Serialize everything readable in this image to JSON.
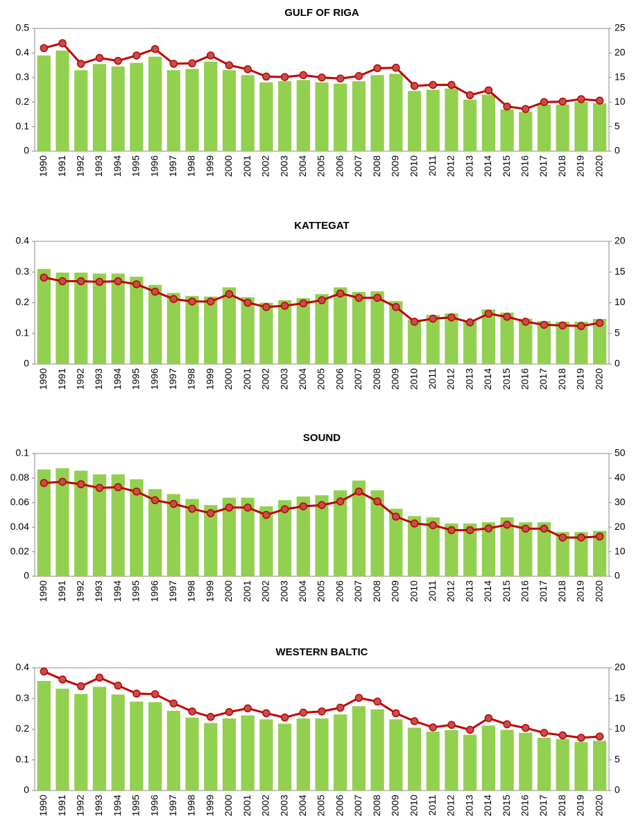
{
  "chart_data": [
    {
      "type": "bar-line",
      "title": "GULF OF RIGA",
      "categories": [
        "1990",
        "1991",
        "1992",
        "1993",
        "1994",
        "1995",
        "1996",
        "1997",
        "1998",
        "1999",
        "2000",
        "2001",
        "2002",
        "2003",
        "2004",
        "2005",
        "2006",
        "2007",
        "2008",
        "2009",
        "2010",
        "2011",
        "2012",
        "2013",
        "2014",
        "2015",
        "2016",
        "2017",
        "2018",
        "2019",
        "2020"
      ],
      "series": [
        {
          "color": "#92d050",
          "values": [
            0.39,
            0.41,
            0.33,
            0.355,
            0.345,
            0.36,
            0.385,
            0.33,
            0.335,
            0.365,
            0.33,
            0.31,
            0.28,
            0.285,
            0.29,
            0.28,
            0.275,
            0.285,
            0.31,
            0.315,
            0.245,
            0.25,
            0.255,
            0.21,
            0.23,
            0.17,
            0.16,
            0.19,
            0.19,
            0.2,
            0.195
          ]
        },
        {
          "color": "#c00000",
          "axis": "y2",
          "values": [
            21,
            22,
            17.8,
            19,
            18.4,
            19.5,
            20.8,
            17.8,
            17.9,
            19.5,
            17.5,
            16.7,
            15.2,
            15.1,
            15.5,
            15,
            14.8,
            15.3,
            16.9,
            17,
            13.3,
            13.5,
            13.5,
            11.4,
            12.4,
            9.1,
            8.6,
            10,
            10.1,
            10.6,
            10.3
          ]
        }
      ],
      "ylim": [
        0,
        0.5
      ],
      "yticks": [
        0,
        0.1,
        0.2,
        0.3,
        0.4,
        0.5
      ],
      "y2lim": [
        0,
        25
      ],
      "y2ticks": [
        0,
        5,
        10,
        15,
        20,
        25
      ]
    },
    {
      "type": "bar-line",
      "title": "KATTEGAT",
      "categories": [
        "1990",
        "1991",
        "1992",
        "1993",
        "1994",
        "1995",
        "1996",
        "1997",
        "1998",
        "1999",
        "2000",
        "2001",
        "2002",
        "2003",
        "2004",
        "2005",
        "2006",
        "2007",
        "2008",
        "2009",
        "2010",
        "2011",
        "2012",
        "2013",
        "2014",
        "2015",
        "2016",
        "2017",
        "2018",
        "2019",
        "2020"
      ],
      "series": [
        {
          "color": "#92d050",
          "values": [
            0.31,
            0.298,
            0.298,
            0.295,
            0.295,
            0.285,
            0.258,
            0.232,
            0.222,
            0.22,
            0.25,
            0.218,
            0.2,
            0.208,
            0.215,
            0.228,
            0.25,
            0.235,
            0.237,
            0.205,
            0.145,
            0.16,
            0.165,
            0.14,
            0.178,
            0.168,
            0.148,
            0.14,
            0.138,
            0.138,
            0.147
          ]
        },
        {
          "color": "#c00000",
          "axis": "y2",
          "values": [
            14.1,
            13.5,
            13.5,
            13.4,
            13.5,
            13,
            11.8,
            10.6,
            10.2,
            10.2,
            11.4,
            10,
            9.3,
            9.5,
            9.9,
            10.4,
            11.5,
            10.8,
            10.8,
            9.3,
            6.9,
            7.4,
            7.6,
            6.8,
            8.2,
            7.7,
            6.9,
            6.4,
            6.3,
            6.2,
            6.7
          ]
        }
      ],
      "ylim": [
        0,
        0.4
      ],
      "yticks": [
        0,
        0.1,
        0.2,
        0.3,
        0.4
      ],
      "y2lim": [
        0,
        20
      ],
      "y2ticks": [
        0,
        5,
        10,
        15,
        20
      ]
    },
    {
      "type": "bar-line",
      "title": "SOUND",
      "categories": [
        "1990",
        "1991",
        "1992",
        "1993",
        "1994",
        "1995",
        "1996",
        "1997",
        "1998",
        "1999",
        "2000",
        "2001",
        "2002",
        "2003",
        "2004",
        "2005",
        "2006",
        "2007",
        "2008",
        "2009",
        "2010",
        "2011",
        "2012",
        "2013",
        "2014",
        "2015",
        "2016",
        "2017",
        "2018",
        "2019",
        "2020"
      ],
      "series": [
        {
          "color": "#92d050",
          "values": [
            0.087,
            0.088,
            0.086,
            0.083,
            0.083,
            0.079,
            0.071,
            0.067,
            0.063,
            0.058,
            0.064,
            0.064,
            0.057,
            0.062,
            0.065,
            0.066,
            0.07,
            0.078,
            0.07,
            0.055,
            0.049,
            0.048,
            0.043,
            0.043,
            0.044,
            0.048,
            0.044,
            0.044,
            0.036,
            0.036,
            0.037
          ]
        },
        {
          "color": "#c00000",
          "axis": "y2",
          "values": [
            38,
            38.5,
            37.5,
            36,
            36.3,
            34.5,
            31,
            29.5,
            27.5,
            25.7,
            28,
            28,
            25,
            27.3,
            28.5,
            29,
            30.5,
            34.5,
            30.5,
            24.3,
            21.5,
            20.8,
            18.8,
            18.8,
            19.5,
            21,
            19.4,
            19.4,
            15.8,
            15.8,
            16.2
          ]
        }
      ],
      "ylim": [
        0,
        0.1
      ],
      "yticks": [
        0,
        0.02,
        0.04,
        0.06,
        0.08,
        0.1
      ],
      "y2lim": [
        0,
        50
      ],
      "y2ticks": [
        0,
        10,
        20,
        30,
        40,
        50
      ]
    },
    {
      "type": "bar-line",
      "title": "WESTERN BALTIC",
      "categories": [
        "1990",
        "1991",
        "1992",
        "1993",
        "1994",
        "1995",
        "1996",
        "1997",
        "1998",
        "1999",
        "2000",
        "2001",
        "2002",
        "2003",
        "2004",
        "2005",
        "2006",
        "2007",
        "2008",
        "2009",
        "2010",
        "2011",
        "2012",
        "2013",
        "2014",
        "2015",
        "2016",
        "2017",
        "2018",
        "2019",
        "2020"
      ],
      "series": [
        {
          "color": "#92d050",
          "values": [
            0.357,
            0.332,
            0.315,
            0.338,
            0.313,
            0.29,
            0.288,
            0.26,
            0.238,
            0.22,
            0.235,
            0.245,
            0.232,
            0.218,
            0.235,
            0.235,
            0.248,
            0.275,
            0.265,
            0.232,
            0.205,
            0.192,
            0.197,
            0.182,
            0.212,
            0.198,
            0.188,
            0.172,
            0.168,
            0.158,
            0.162
          ]
        },
        {
          "color": "#c00000",
          "axis": "y2",
          "values": [
            19.4,
            18.1,
            17,
            18.4,
            17.1,
            15.8,
            15.7,
            14.2,
            12.9,
            12,
            12.8,
            13.4,
            12.6,
            11.9,
            12.7,
            12.9,
            13.5,
            15.1,
            14.5,
            12.6,
            11.3,
            10.3,
            10.7,
            9.9,
            11.8,
            10.8,
            10.2,
            9.4,
            9,
            8.6,
            8.8
          ]
        }
      ],
      "ylim": [
        0,
        0.4
      ],
      "yticks": [
        0,
        0.1,
        0.2,
        0.3,
        0.4
      ],
      "y2lim": [
        0,
        20
      ],
      "y2ticks": [
        0,
        5,
        10,
        15,
        20
      ]
    }
  ]
}
